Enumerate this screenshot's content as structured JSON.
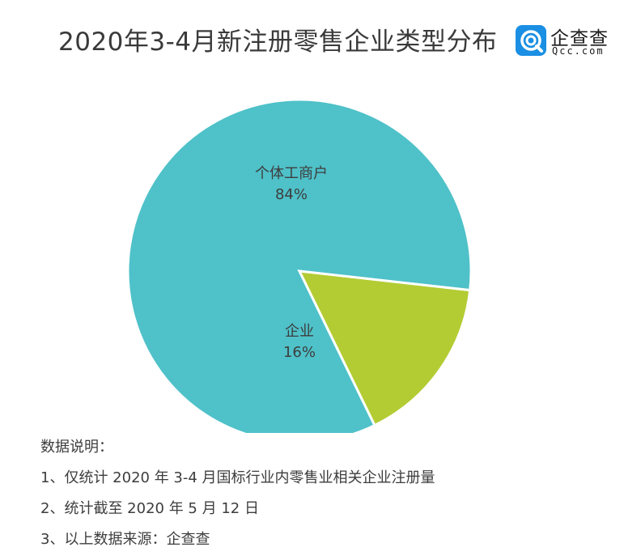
{
  "header": {
    "title": "2020年3-4月新注册零售企业类型分布",
    "brand": {
      "name": "企查查",
      "url": "Qcc.com",
      "icon": "qcc-logo-icon",
      "color": "#1a8fe3"
    }
  },
  "chart_data": {
    "type": "pie",
    "title": "2020年3-4月新注册零售企业类型分布",
    "categories": [
      "个体工商户",
      "企业"
    ],
    "values": [
      84,
      16
    ],
    "labels": [
      "84%",
      "16%"
    ],
    "colors": [
      "#4fc1c9",
      "#b3cc33"
    ],
    "legend": "none"
  },
  "notes": {
    "heading": "数据说明：",
    "items": [
      "1、仅统计 2020 年 3-4 月国标行业内零售业相关企业注册量",
      "2、统计截至 2020 年 5 月 12 日",
      "3、以上数据来源：企查查"
    ]
  }
}
